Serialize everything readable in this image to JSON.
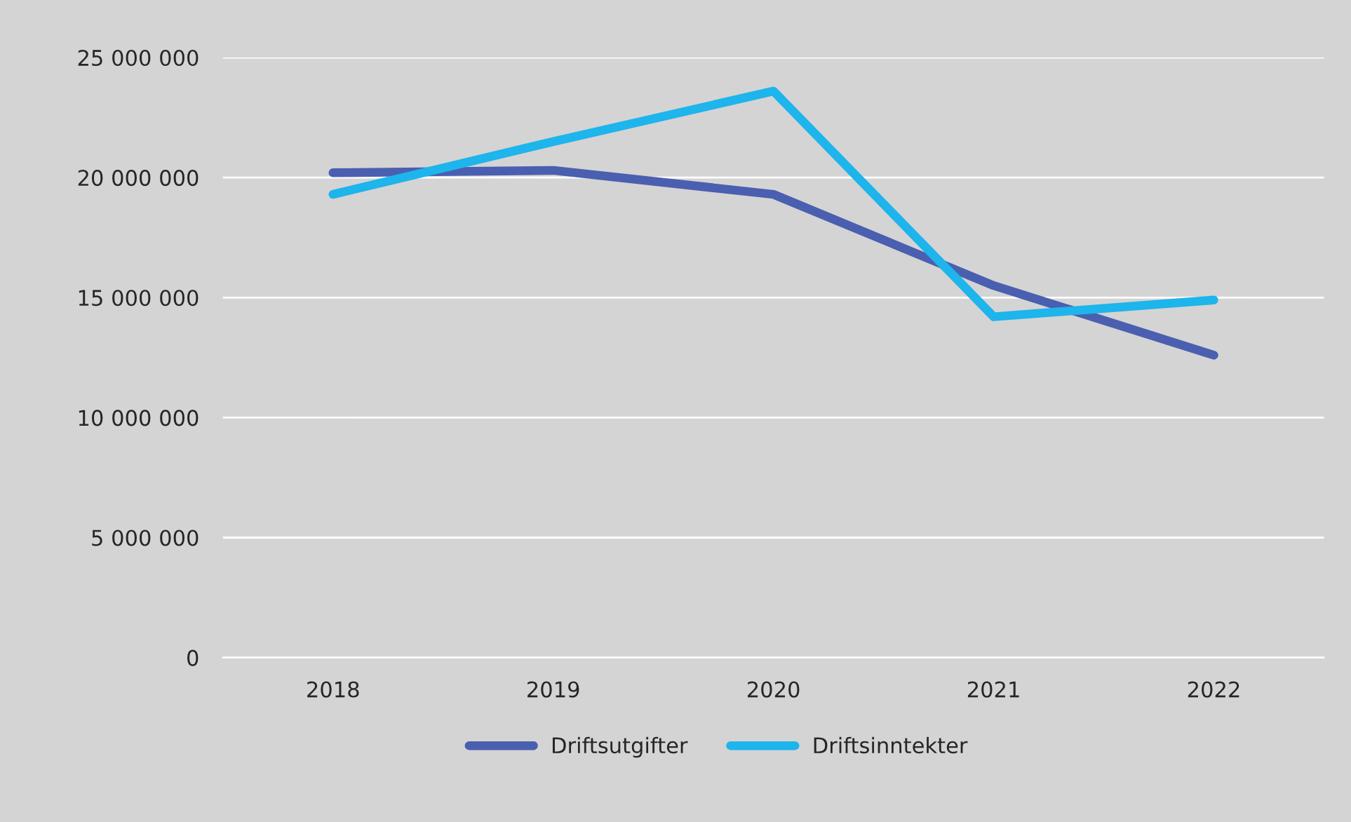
{
  "chart_data": {
    "type": "line",
    "categories": [
      "2018",
      "2019",
      "2020",
      "2021",
      "2022"
    ],
    "series": [
      {
        "name": "Driftsutgifter",
        "color": "#4a5fb0",
        "values": [
          20200000,
          20300000,
          19300000,
          15500000,
          12600000
        ]
      },
      {
        "name": "Driftsinntekter",
        "color": "#1eb4ec",
        "values": [
          19300000,
          21500000,
          23600000,
          14200000,
          14900000
        ]
      }
    ],
    "ylim": [
      0,
      25000000
    ],
    "yticks": [
      {
        "value": 0,
        "label": "0"
      },
      {
        "value": 5000000,
        "label": "5 000 000"
      },
      {
        "value": 10000000,
        "label": "10 000 000"
      },
      {
        "value": 15000000,
        "label": "15 000 000"
      },
      {
        "value": 20000000,
        "label": "20 000 000"
      },
      {
        "value": 25000000,
        "label": "25 000 000"
      }
    ],
    "grid": "y",
    "legend": "bottom",
    "marker": "none",
    "line_style": "solid"
  }
}
